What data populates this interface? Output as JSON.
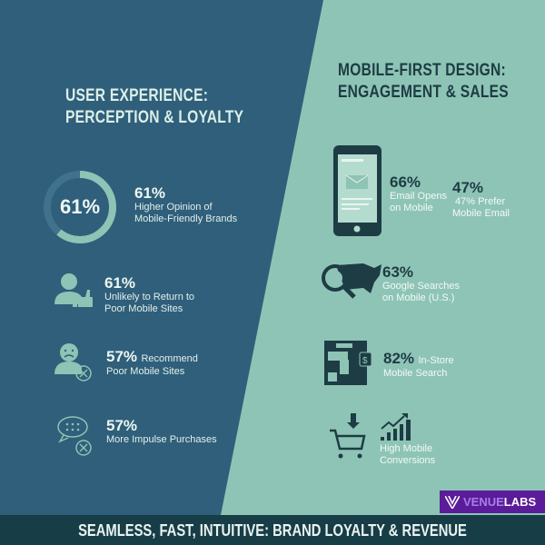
{
  "colors": {
    "left_bg": "#2f5f7a",
    "right_bg": "#8ec4b5",
    "footer_bg": "#173d47",
    "accent_light": "#8ec4b5",
    "dark": "#1d3c44",
    "logo_bg": "#5b1c99"
  },
  "left": {
    "title_line1": "USER EXPERIENCE:",
    "title_line2": "PERCEPTION & LOYALTY",
    "donut": {
      "label": "61%",
      "value": 61
    },
    "stats": [
      {
        "value": "61%",
        "line1": "Higher Opinion of",
        "line2": "Mobile-Friendly Brands",
        "icon": "donut-chart"
      },
      {
        "value": "61%",
        "line1": "Unlikely to Return to",
        "line2": "Poor Mobile Sites",
        "icon": "user-thumbs-up-icon"
      },
      {
        "value": "57%",
        "line1": "Recommend",
        "line2": "Poor Mobile Sites",
        "icon": "sad-user-x-icon"
      },
      {
        "value": "57%",
        "line1": "More Impulse Purchases",
        "icon": "chat-bubble-x-icon"
      }
    ]
  },
  "right": {
    "title_line1": "MOBILE-FIRST DESIGN:",
    "title_line2": "ENGAGEMENT & SALES",
    "stats": [
      {
        "value": "66%",
        "line1": "Email Opens",
        "line2": "on Mobile",
        "icon": "smartphone-email-icon"
      },
      {
        "value": "47%",
        "line1": "47% Prefer",
        "line2": "Mobile Email"
      },
      {
        "value": "63%",
        "line1": "Google Searches",
        "line2": "on Mobile (U.S.)",
        "icon": "magnifier-usa-map-icon"
      },
      {
        "value": "82%",
        "line1": "In-Store",
        "line2": "Mobile Search",
        "icon": "store-phone-icon"
      },
      {
        "line1": "High Mobile",
        "line2": "Conversions",
        "icon": "cart-growth-chart-icon"
      }
    ]
  },
  "logo": {
    "text_a": "VENUE",
    "text_b": "LABS"
  },
  "footer": {
    "text": "SEAMLESS, FAST, INTUITIVE: BRAND LOYALTY & REVENUE"
  }
}
